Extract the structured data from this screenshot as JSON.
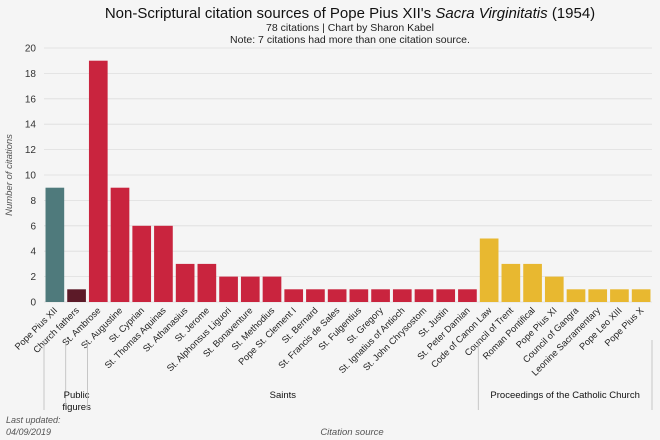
{
  "chart_data": {
    "type": "bar",
    "title_main": "Non-Scriptural citation sources of Pope Pius XII's",
    "title_italic": "Sacra Virginitatis",
    "title_end": "(1954)",
    "subtitle": "78 citations | Chart by Sharon Kabel",
    "note": "Note: 7 citations had more than one citation source.",
    "ylabel": "Number of citations",
    "xlabel": "Citation source",
    "ylim": [
      0,
      20
    ],
    "yticks": [
      0,
      2,
      4,
      6,
      8,
      10,
      12,
      14,
      16,
      18,
      20
    ],
    "footer": [
      "Last updated:",
      "04/09/2019"
    ],
    "groups": [
      {
        "name": "",
        "color": "#4f7a7c",
        "bars": [
          {
            "label": "Pope Pius XII",
            "value": 9
          }
        ]
      },
      {
        "name": "Public figures",
        "name_lines": [
          "Public",
          "figures"
        ],
        "color": "#5c1a28",
        "bars": [
          {
            "label": "Church fathers",
            "value": 1
          }
        ]
      },
      {
        "name": "Saints",
        "color": "#c9243e",
        "bars": [
          {
            "label": "St. Ambrose",
            "value": 19
          },
          {
            "label": "St. Augustine",
            "value": 9
          },
          {
            "label": "St. Cyprian",
            "value": 6
          },
          {
            "label": "St. Thomas Aquinas",
            "value": 6
          },
          {
            "label": "St. Athanasius",
            "value": 3
          },
          {
            "label": "St. Jerome",
            "value": 3
          },
          {
            "label": "St. Alphonsus Liguori",
            "value": 2
          },
          {
            "label": "St. Bonaventure",
            "value": 2
          },
          {
            "label": "St. Methodius",
            "value": 2
          },
          {
            "label": "Pope St. Clement I",
            "value": 1
          },
          {
            "label": "St. Bernard",
            "value": 1
          },
          {
            "label": "St. Francis de Sales",
            "value": 1
          },
          {
            "label": "St. Fulgentius",
            "value": 1
          },
          {
            "label": "St. Gregory",
            "value": 1
          },
          {
            "label": "St. Ignatius of Antioch",
            "value": 1
          },
          {
            "label": "St. John Chrysostom",
            "value": 1
          },
          {
            "label": "St. Justin",
            "value": 1
          },
          {
            "label": "St. Peter Damian",
            "value": 1
          }
        ]
      },
      {
        "name": "Proceedings of the Catholic Church",
        "color": "#e8b830",
        "bars": [
          {
            "label": "Code of Canon Law",
            "value": 5
          },
          {
            "label": "Council of Trent",
            "value": 3
          },
          {
            "label": "Roman Pontifical",
            "value": 3
          },
          {
            "label": "Pope Pius XI",
            "value": 2
          },
          {
            "label": "Council of Gangra",
            "value": 1
          },
          {
            "label": "Leonine Sacramentary",
            "value": 1
          },
          {
            "label": "Pope Leo XIII",
            "value": 1
          },
          {
            "label": "Pope Pius X",
            "value": 1
          }
        ]
      }
    ]
  }
}
